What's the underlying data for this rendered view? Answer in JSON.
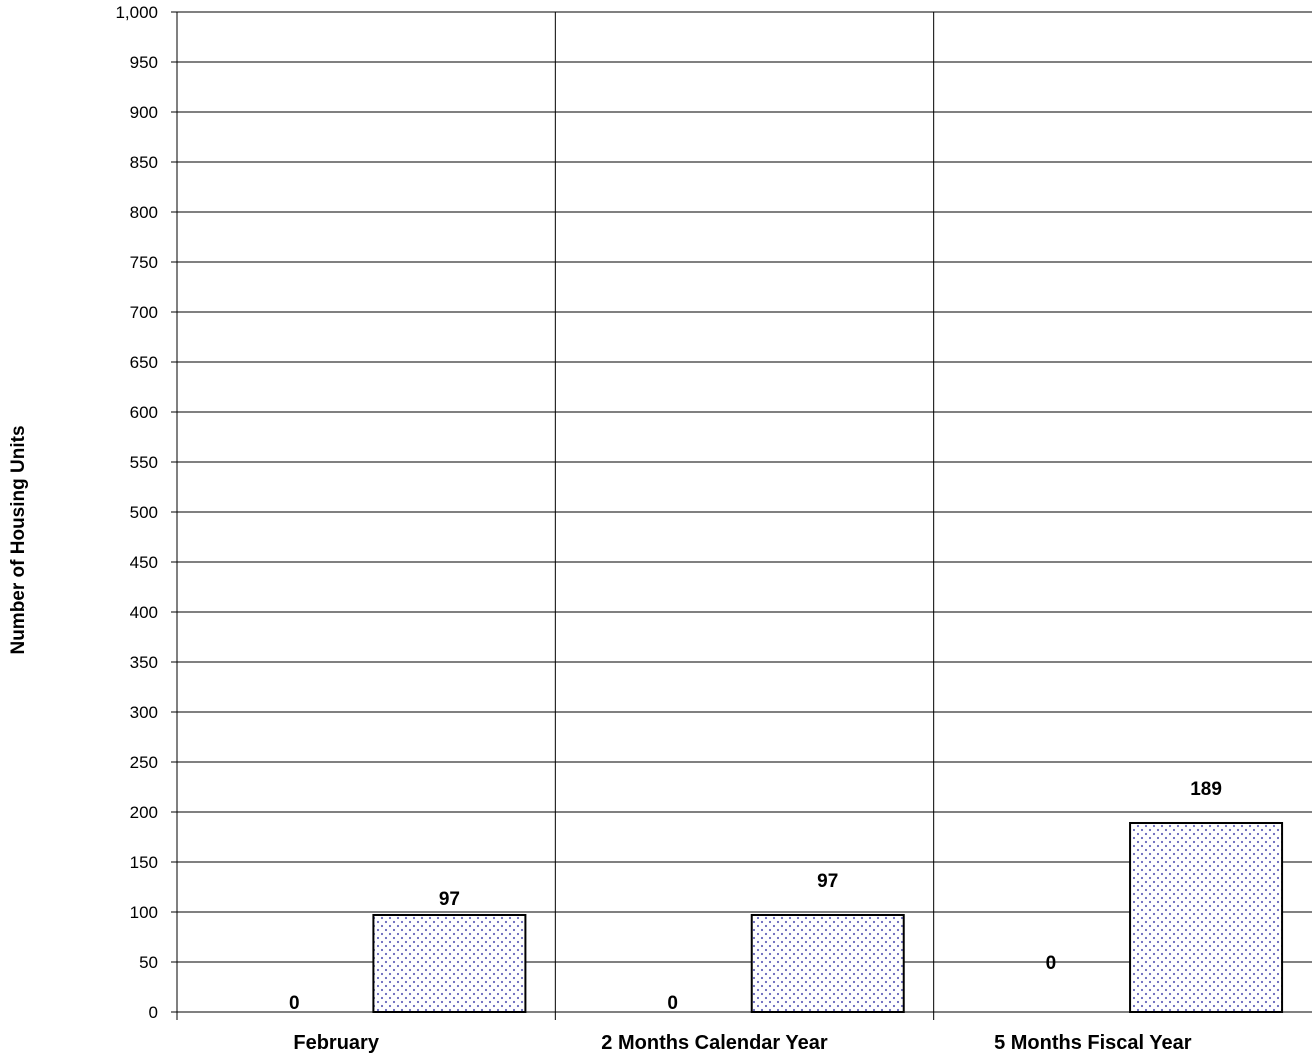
{
  "chart_data": {
    "type": "bar",
    "ylabel": "Number of Housing Units",
    "xlabel": "",
    "ylim": [
      0,
      1000
    ],
    "ytick_step": 50,
    "ytick_labels": [
      "0",
      "50",
      "100",
      "150",
      "200",
      "250",
      "300",
      "350",
      "400",
      "450",
      "500",
      "550",
      "600",
      "650",
      "700",
      "750",
      "800",
      "850",
      "900",
      "950",
      "1,000"
    ],
    "grid": true,
    "categories": [
      "February",
      "2 Months Calendar Year",
      "5 Months Fiscal Year"
    ],
    "series": [
      {
        "values": [
          0,
          0,
          0
        ],
        "fill": "none"
      },
      {
        "values": [
          97,
          97,
          189
        ],
        "fill": "dotted",
        "color": "#6666bb"
      }
    ],
    "data_labels": [
      [
        "0",
        "0",
        "0"
      ],
      [
        "97",
        "97",
        "189"
      ]
    ]
  }
}
